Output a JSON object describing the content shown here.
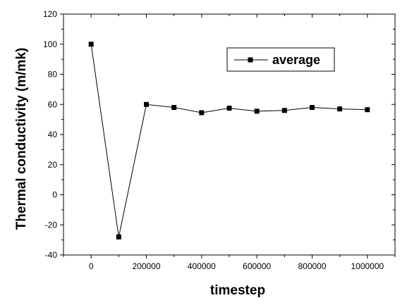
{
  "chart_data": {
    "type": "line",
    "title": "",
    "xlabel": "timestep",
    "ylabel": "Thermal conductivity (m/mk)",
    "xlim": [
      -100000,
      1100000
    ],
    "ylim": [
      -40,
      120
    ],
    "x_ticks": [
      0,
      200000,
      400000,
      600000,
      800000,
      1000000
    ],
    "x_tick_labels": [
      "0",
      "200000",
      "400000",
      "600000",
      "800000",
      "1000000"
    ],
    "y_ticks": [
      -40,
      -20,
      0,
      20,
      40,
      60,
      80,
      100,
      120
    ],
    "y_tick_labels": [
      "-40",
      "-20",
      "0",
      "20",
      "40",
      "60",
      "80",
      "100",
      "120"
    ],
    "grid": false,
    "legend_position": "top-right",
    "series": [
      {
        "name": "average",
        "marker": "square",
        "color": "#000000",
        "x": [
          0,
          100000,
          200000,
          300000,
          400000,
          500000,
          600000,
          700000,
          800000,
          900000,
          1000000
        ],
        "y": [
          100,
          -28,
          60,
          58,
          54.5,
          57.5,
          55.5,
          56,
          58,
          57,
          56.5
        ]
      }
    ]
  }
}
